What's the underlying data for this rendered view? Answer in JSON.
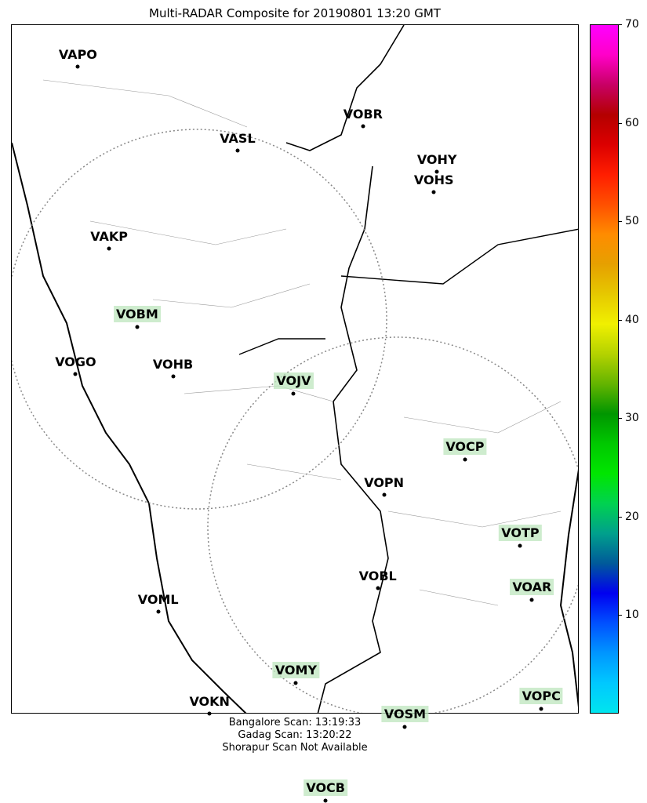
{
  "title": "Multi-RADAR Composite for 20190801 13:20 GMT",
  "stations": [
    {
      "code": "VAPO",
      "lon": 73.86,
      "lat": 18.52,
      "highlight": false
    },
    {
      "code": "VASL",
      "lon": 75.91,
      "lat": 17.66,
      "highlight": false
    },
    {
      "code": "VOBR",
      "lon": 77.52,
      "lat": 17.91,
      "highlight": false
    },
    {
      "code": "VOHY",
      "lon": 78.47,
      "lat": 17.45,
      "highlight": false
    },
    {
      "code": "VOHS",
      "lon": 78.43,
      "lat": 17.24,
      "highlight": false
    },
    {
      "code": "VAKP",
      "lon": 74.26,
      "lat": 16.66,
      "highlight": false
    },
    {
      "code": "VOBM",
      "lon": 74.62,
      "lat": 15.86,
      "highlight": true
    },
    {
      "code": "VOGO",
      "lon": 73.83,
      "lat": 15.38,
      "highlight": false
    },
    {
      "code": "VOHB",
      "lon": 75.08,
      "lat": 15.36,
      "highlight": false
    },
    {
      "code": "VOJV",
      "lon": 76.63,
      "lat": 15.18,
      "highlight": true
    },
    {
      "code": "VOCP",
      "lon": 78.83,
      "lat": 14.51,
      "highlight": true
    },
    {
      "code": "VOPN",
      "lon": 77.79,
      "lat": 14.15,
      "highlight": false
    },
    {
      "code": "VOTP",
      "lon": 79.54,
      "lat": 13.63,
      "highlight": true
    },
    {
      "code": "VOBL",
      "lon": 77.71,
      "lat": 13.2,
      "highlight": false
    },
    {
      "code": "VOAR",
      "lon": 79.69,
      "lat": 13.08,
      "highlight": true
    },
    {
      "code": "VOML",
      "lon": 74.89,
      "lat": 12.96,
      "highlight": false
    },
    {
      "code": "VOMY",
      "lon": 76.66,
      "lat": 12.23,
      "highlight": true
    },
    {
      "code": "VOKN",
      "lon": 75.55,
      "lat": 11.92,
      "highlight": false
    },
    {
      "code": "VOPC",
      "lon": 79.81,
      "lat": 11.97,
      "highlight": true
    },
    {
      "code": "VOSM",
      "lon": 78.06,
      "lat": 11.78,
      "highlight": true
    },
    {
      "code": "VOCB",
      "lon": 77.04,
      "lat": 11.03,
      "highlight": true
    }
  ],
  "colorbar": {
    "min": 0,
    "max": 70,
    "ticks": [
      "10",
      "20",
      "30",
      "40",
      "50",
      "60",
      "70"
    ],
    "colors": [
      "#00e5ee",
      "#00c8ff",
      "#0096ff",
      "#0050ff",
      "#0000f0",
      "#005a9a",
      "#00a08c",
      "#00d250",
      "#00e600",
      "#00c800",
      "#009600",
      "#64b400",
      "#b4d200",
      "#f0f000",
      "#e6c800",
      "#e6a000",
      "#ff8c00",
      "#ff5000",
      "#ff1e00",
      "#dc0000",
      "#b40000",
      "#c80064",
      "#ff00c8",
      "#ff00ff"
    ]
  },
  "footer": {
    "line1": "Bangalore Scan: 13:19:33",
    "line2": "Gadag Scan: 13:20:22",
    "line3": "Shorapur Scan Not Available"
  }
}
